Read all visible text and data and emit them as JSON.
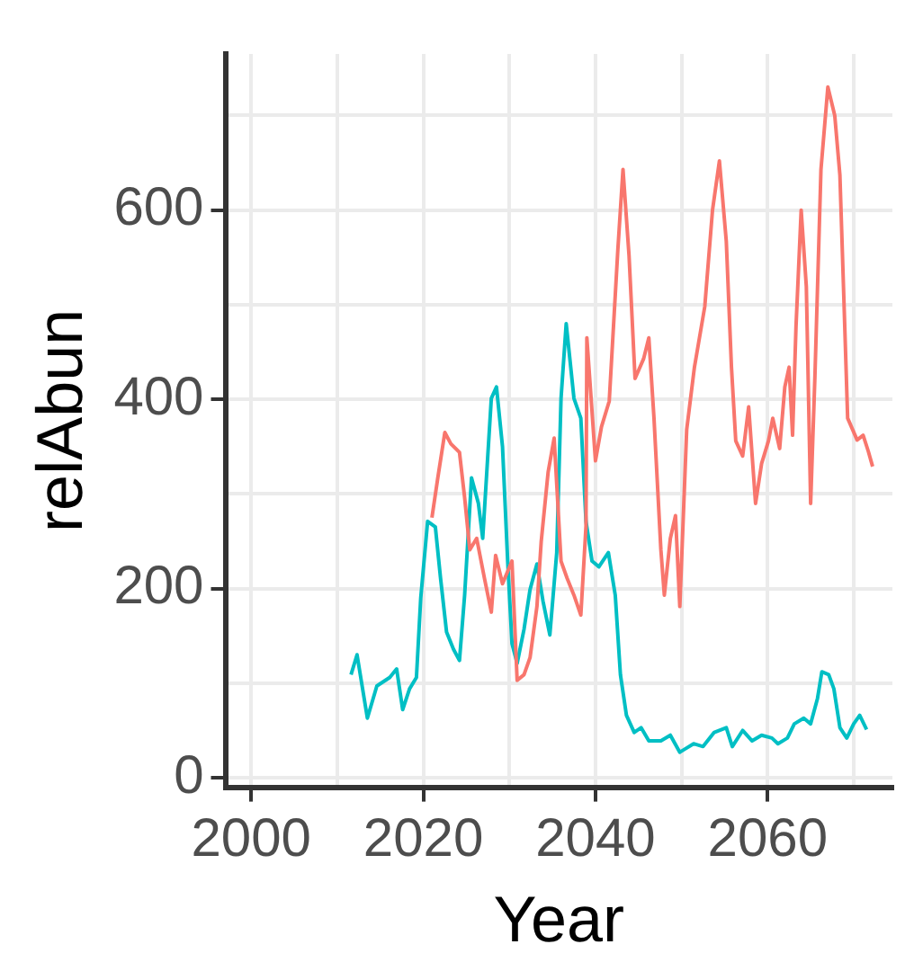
{
  "chart_data": {
    "type": "line",
    "xlabel": "Year",
    "ylabel": "relAbun",
    "xlim": [
      1997,
      2074.5
    ],
    "ylim": [
      -10,
      765
    ],
    "xticks": [
      2000,
      {
        "value": 2010,
        "label": null
      },
      2020,
      {
        "value": 2030,
        "label": null
      },
      2040,
      {
        "value": 2050,
        "label": null
      },
      2060,
      {
        "value": 2070,
        "label": null
      }
    ],
    "yticks": [
      0,
      {
        "value": 100,
        "label": null
      },
      200,
      {
        "value": 300,
        "label": null
      },
      400,
      {
        "value": 500,
        "label": null
      },
      600,
      {
        "value": 700,
        "label": null
      }
    ],
    "grid": true,
    "legend": false,
    "line_style": "solid",
    "marker": "none",
    "series": [
      {
        "color": "#f8766d",
        "x": [
          2021,
          2021.7,
          2022.5,
          2023.2,
          2024.2,
          2024.8,
          2025.4,
          2026.2,
          2027.1,
          2027.9,
          2028.4,
          2029.2,
          2030.3,
          2030.9,
          2031.7,
          2032.4,
          2033.2,
          2033.7,
          2034.5,
          2035.2,
          2036,
          2036.7,
          2037.5,
          2038.3,
          2038.9,
          2039,
          2040,
          2040.7,
          2041.6,
          2042.6,
          2043.2,
          2043.9,
          2044.6,
          2045.6,
          2046.2,
          2046.8,
          2047.6,
          2048,
          2048.7,
          2049.3,
          2049.8,
          2050.6,
          2051.5,
          2052.7,
          2053.6,
          2054.4,
          2055.2,
          2055.8,
          2056.3,
          2057.1,
          2057.8,
          2058.6,
          2059.3,
          2060.1,
          2060.6,
          2061.4,
          2062,
          2062.5,
          2062.9,
          2063.3,
          2063.9,
          2064.5,
          2065,
          2065.5,
          2066.2,
          2067,
          2067.8,
          2068.4,
          2068.9,
          2069.3,
          2070.4,
          2071.1,
          2071.7,
          2072.2
        ],
        "values": [
          275,
          318,
          365,
          353,
          344,
          296,
          241,
          253,
          211,
          175,
          235,
          205,
          229,
          103,
          109,
          127,
          181,
          250,
          323,
          359,
          229,
          211,
          193,
          172,
          266,
          465,
          335,
          371,
          398,
          558,
          643,
          552,
          422,
          443,
          465,
          380,
          241,
          193,
          253,
          277,
          181,
          368,
          434,
          498,
          600,
          652,
          567,
          434,
          356,
          340,
          392,
          290,
          332,
          356,
          380,
          348,
          413,
          434,
          362,
          477,
          600,
          519,
          290,
          425,
          643,
          730,
          700,
          637,
          495,
          380,
          357,
          362,
          345,
          329
        ]
      },
      {
        "color": "#00bfc4",
        "x": [
          2011.6,
          2012.3,
          2013.5,
          2014.6,
          2016.1,
          2016.9,
          2017.6,
          2018.4,
          2019.2,
          2019.7,
          2020.5,
          2021.4,
          2022,
          2022.7,
          2023.5,
          2024.2,
          2024.8,
          2025.6,
          2026.4,
          2026.9,
          2027.9,
          2028.5,
          2029.2,
          2029.8,
          2030.3,
          2030.9,
          2031.7,
          2032.4,
          2033.2,
          2033.9,
          2034.7,
          2035.5,
          2036,
          2036.6,
          2037.5,
          2038.3,
          2038.9,
          2039.6,
          2040.4,
          2041.5,
          2042.3,
          2042.9,
          2043.6,
          2044.5,
          2045.3,
          2046.2,
          2047.6,
          2048.7,
          2049.8,
          2051.4,
          2052.5,
          2053.8,
          2055.2,
          2055.9,
          2057.1,
          2058.2,
          2059.3,
          2060.5,
          2061.2,
          2062.3,
          2063.1,
          2064.2,
          2065,
          2065.8,
          2066.3,
          2067.1,
          2067.7,
          2068.4,
          2069.2,
          2070,
          2070.7,
          2071.5
        ],
        "values": [
          109,
          130,
          63,
          97,
          106,
          115,
          72,
          94,
          106,
          190,
          271,
          265,
          211,
          154,
          136,
          124,
          193,
          317,
          290,
          253,
          401,
          413,
          350,
          229,
          142,
          121,
          157,
          199,
          226,
          187,
          151,
          238,
          401,
          480,
          401,
          380,
          271,
          229,
          223,
          238,
          193,
          109,
          66,
          48,
          53,
          39,
          39,
          45,
          27,
          36,
          33,
          48,
          53,
          33,
          50,
          39,
          45,
          42,
          36,
          42,
          57,
          63,
          57,
          84,
          112,
          109,
          94,
          53,
          42,
          57,
          66,
          51
        ]
      }
    ]
  }
}
